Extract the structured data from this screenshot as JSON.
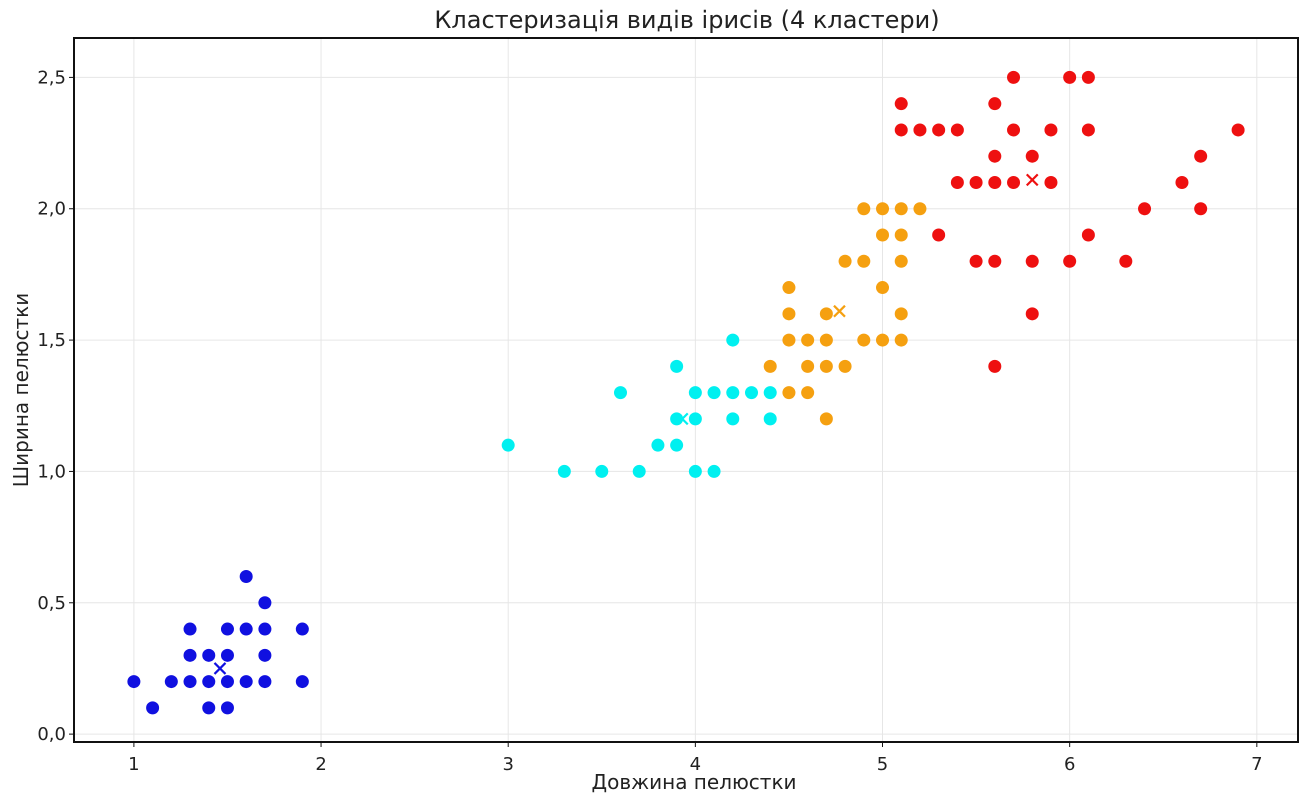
{
  "chart_data": {
    "type": "scatter",
    "title": "Кластеризація видів ірисів (4 кластери)",
    "xlabel": "Довжина пелюстки",
    "ylabel": "Ширина пелюстки",
    "xlim": [
      0.68,
      7.22
    ],
    "ylim": [
      -0.03,
      2.65
    ],
    "x_ticks": [
      1,
      2,
      3,
      4,
      5,
      6,
      7
    ],
    "y_ticks": [
      0.0,
      0.5,
      1.0,
      1.5,
      2.0,
      2.5
    ],
    "x_tick_labels": [
      "1",
      "2",
      "3",
      "4",
      "5",
      "6",
      "7"
    ],
    "y_tick_labels": [
      "0,0",
      "0,5",
      "1,0",
      "1,5",
      "2,0",
      "2,5"
    ],
    "grid": true,
    "series": [
      {
        "color": "#1010e0",
        "points": [
          [
            1.0,
            0.2
          ],
          [
            1.1,
            0.1
          ],
          [
            1.2,
            0.2
          ],
          [
            1.3,
            0.2
          ],
          [
            1.3,
            0.3
          ],
          [
            1.3,
            0.4
          ],
          [
            1.4,
            0.1
          ],
          [
            1.4,
            0.2
          ],
          [
            1.4,
            0.3
          ],
          [
            1.5,
            0.1
          ],
          [
            1.5,
            0.2
          ],
          [
            1.5,
            0.3
          ],
          [
            1.5,
            0.4
          ],
          [
            1.6,
            0.2
          ],
          [
            1.6,
            0.4
          ],
          [
            1.6,
            0.6
          ],
          [
            1.7,
            0.2
          ],
          [
            1.7,
            0.3
          ],
          [
            1.7,
            0.4
          ],
          [
            1.7,
            0.5
          ],
          [
            1.9,
            0.2
          ],
          [
            1.9,
            0.4
          ]
        ],
        "centroid": [
          1.46,
          0.25
        ]
      },
      {
        "color": "#00f0f0",
        "points": [
          [
            3.0,
            1.1
          ],
          [
            3.3,
            1.0
          ],
          [
            3.5,
            1.0
          ],
          [
            3.6,
            1.3
          ],
          [
            3.7,
            1.0
          ],
          [
            3.8,
            1.1
          ],
          [
            3.9,
            1.1
          ],
          [
            3.9,
            1.2
          ],
          [
            3.9,
            1.4
          ],
          [
            4.0,
            1.0
          ],
          [
            4.0,
            1.2
          ],
          [
            4.0,
            1.3
          ],
          [
            4.1,
            1.0
          ],
          [
            4.1,
            1.3
          ],
          [
            4.2,
            1.2
          ],
          [
            4.2,
            1.3
          ],
          [
            4.2,
            1.5
          ],
          [
            4.3,
            1.3
          ],
          [
            4.4,
            1.2
          ],
          [
            4.4,
            1.3
          ]
        ],
        "centroid": [
          3.93,
          1.2
        ]
      },
      {
        "color": "#f5a010",
        "points": [
          [
            4.4,
            1.4
          ],
          [
            4.5,
            1.3
          ],
          [
            4.5,
            1.5
          ],
          [
            4.5,
            1.6
          ],
          [
            4.5,
            1.7
          ],
          [
            4.6,
            1.3
          ],
          [
            4.6,
            1.4
          ],
          [
            4.6,
            1.5
          ],
          [
            4.7,
            1.2
          ],
          [
            4.7,
            1.4
          ],
          [
            4.7,
            1.5
          ],
          [
            4.7,
            1.6
          ],
          [
            4.8,
            1.4
          ],
          [
            4.8,
            1.8
          ],
          [
            4.9,
            1.5
          ],
          [
            4.9,
            1.8
          ],
          [
            4.9,
            2.0
          ],
          [
            5.0,
            1.5
          ],
          [
            5.0,
            1.7
          ],
          [
            5.0,
            1.9
          ],
          [
            5.0,
            2.0
          ],
          [
            5.1,
            1.5
          ],
          [
            5.1,
            1.6
          ],
          [
            5.1,
            1.8
          ],
          [
            5.1,
            1.9
          ],
          [
            5.1,
            2.0
          ],
          [
            5.2,
            2.0
          ]
        ],
        "centroid": [
          4.77,
          1.61
        ]
      },
      {
        "color": "#ee1010",
        "points": [
          [
            5.1,
            2.3
          ],
          [
            5.1,
            2.4
          ],
          [
            5.2,
            2.3
          ],
          [
            5.3,
            1.9
          ],
          [
            5.3,
            2.3
          ],
          [
            5.4,
            2.1
          ],
          [
            5.4,
            2.3
          ],
          [
            5.5,
            1.8
          ],
          [
            5.5,
            2.1
          ],
          [
            5.6,
            1.4
          ],
          [
            5.6,
            1.8
          ],
          [
            5.6,
            2.1
          ],
          [
            5.6,
            2.2
          ],
          [
            5.6,
            2.4
          ],
          [
            5.7,
            2.1
          ],
          [
            5.7,
            2.3
          ],
          [
            5.7,
            2.5
          ],
          [
            5.8,
            1.6
          ],
          [
            5.8,
            1.8
          ],
          [
            5.8,
            2.2
          ],
          [
            5.9,
            2.1
          ],
          [
            5.9,
            2.3
          ],
          [
            6.0,
            1.8
          ],
          [
            6.0,
            2.5
          ],
          [
            6.1,
            1.9
          ],
          [
            6.1,
            2.3
          ],
          [
            6.1,
            2.5
          ],
          [
            6.3,
            1.8
          ],
          [
            6.4,
            2.0
          ],
          [
            6.6,
            2.1
          ],
          [
            6.7,
            2.0
          ],
          [
            6.7,
            2.2
          ],
          [
            6.9,
            2.3
          ]
        ],
        "centroid": [
          5.8,
          2.11
        ]
      }
    ]
  }
}
